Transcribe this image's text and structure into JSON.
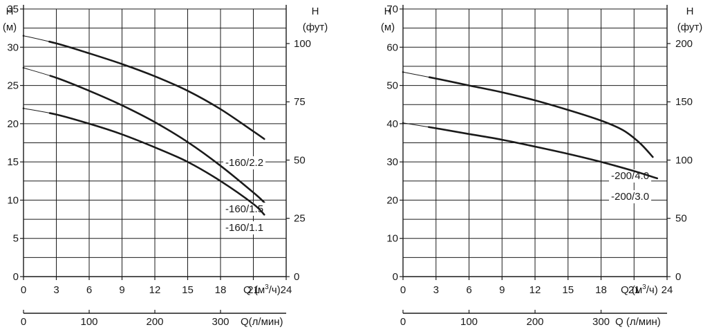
{
  "colors": {
    "curve": "#1a1a1a",
    "grid": "#1a1a1a",
    "background": "#ffffff"
  },
  "chart_data": [
    {
      "type": "line",
      "title": "",
      "xlabel": "Q (м³/ч)",
      "xlabel_parts": {
        "prefix": "Q (м",
        "sup": "3",
        "suffix": "/ч)"
      },
      "x2label": "Q(л/мин)",
      "ylabel_left": {
        "line1": "H",
        "line2": "(м)"
      },
      "ylabel_right": {
        "line1": "H",
        "line2": "(фут)"
      },
      "xlim": [
        0,
        24
      ],
      "ylim": [
        0,
        35
      ],
      "x_ticks": [
        0,
        3,
        6,
        9,
        12,
        15,
        18,
        21,
        24
      ],
      "x_tick_labels": [
        "0",
        "3",
        "6",
        "9",
        "12",
        "15",
        "18",
        "21",
        "24"
      ],
      "y_ticks": [
        0,
        5,
        10,
        15,
        20,
        25,
        30,
        35
      ],
      "y_tick_labels": [
        "0",
        "5",
        "10",
        "15",
        "20",
        "25",
        "30",
        "35"
      ],
      "y2_ticks": [
        0,
        25,
        50,
        75,
        100
      ],
      "y2_tick_labels": [
        "0",
        "25",
        "50",
        "75",
        "100"
      ],
      "x2_ticks": [
        0,
        100,
        200,
        300
      ],
      "x2_tick_labels": [
        "0",
        "100",
        "200",
        "300"
      ],
      "series": [
        {
          "name": "-160/2.2",
          "x": [
            0,
            3,
            6,
            9,
            12,
            15,
            18,
            21,
            22
          ],
          "y": [
            31.5,
            30.5,
            29.2,
            27.8,
            26.2,
            24.3,
            21.9,
            19,
            18
          ]
        },
        {
          "name": "-160/1.5",
          "x": [
            0,
            3,
            6,
            9,
            12,
            15,
            18,
            21,
            22
          ],
          "y": [
            27.3,
            26,
            24.3,
            22.4,
            20.2,
            17.6,
            14.5,
            11,
            9.7
          ]
        },
        {
          "name": "-160/1.1",
          "x": [
            0,
            3,
            6,
            9,
            12,
            15,
            18,
            21,
            22
          ],
          "y": [
            22,
            21.2,
            20,
            18.6,
            16.9,
            15,
            12.5,
            9.5,
            8.1
          ]
        }
      ]
    },
    {
      "type": "line",
      "title": "",
      "xlabel": "Q (м³/ч)",
      "xlabel_parts": {
        "prefix": "Q (м",
        "sup": "3",
        "suffix": "/ч)"
      },
      "x2label": "Q (л/мин)",
      "ylabel_left": {
        "line1": "H",
        "line2": "(м)"
      },
      "ylabel_right": {
        "line1": "H",
        "line2": "(фут)"
      },
      "xlim": [
        0,
        24
      ],
      "ylim": [
        0,
        70
      ],
      "x_ticks": [
        0,
        3,
        6,
        9,
        12,
        15,
        18,
        21,
        24
      ],
      "x_tick_labels": [
        "0",
        "3",
        "6",
        "9",
        "12",
        "15",
        "18",
        "21",
        "24"
      ],
      "y_ticks": [
        0,
        10,
        20,
        30,
        40,
        50,
        60,
        70
      ],
      "y_tick_labels": [
        "0",
        "10",
        "20",
        "30",
        "40",
        "50",
        "60",
        "70"
      ],
      "y2_ticks": [
        0,
        50,
        100,
        150,
        200
      ],
      "y2_tick_labels": [
        "0",
        "50",
        "100",
        "150",
        "200"
      ],
      "x2_ticks": [
        0,
        100,
        200,
        300
      ],
      "x2_tick_labels": [
        "0",
        "100",
        "200",
        "300"
      ],
      "series": [
        {
          "name": "-200/4.0",
          "x": [
            0,
            3,
            6,
            9,
            12,
            15,
            18,
            20,
            21.5,
            22.7
          ],
          "y": [
            53.5,
            51.8,
            50,
            48.2,
            46.1,
            43.6,
            40.8,
            38.3,
            35,
            31.3
          ]
        },
        {
          "name": "-200/3.0",
          "x": [
            0,
            3,
            6,
            9,
            12,
            15,
            18,
            21,
            23.1
          ],
          "y": [
            40.2,
            38.8,
            37.3,
            35.8,
            34,
            32.1,
            30,
            27.6,
            25.7
          ]
        }
      ]
    }
  ]
}
